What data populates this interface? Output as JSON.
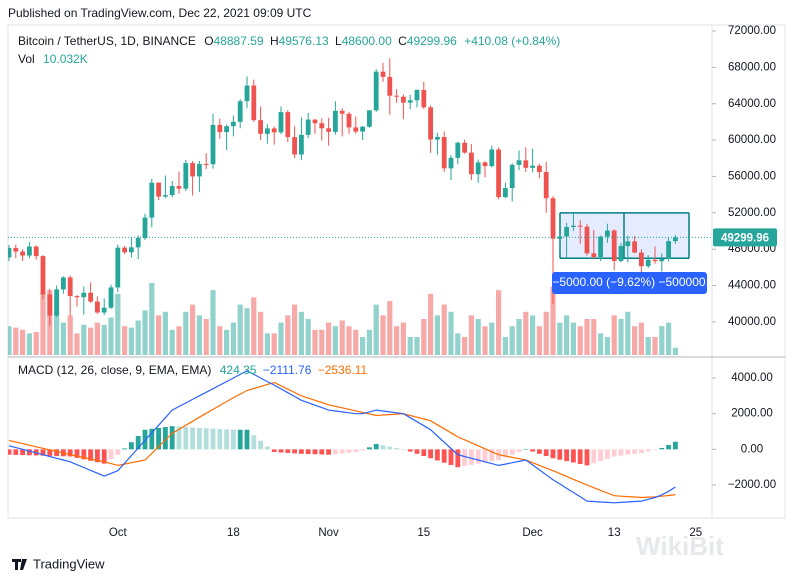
{
  "header": {
    "published": "Published on TradingView.com, Dec 22, 2021 09:09 UTC",
    "symbol": "Bitcoin / TetherUS, 1D, BINANCE",
    "ohlc": [
      [
        "O",
        "48887.59"
      ],
      [
        "H",
        "49576.13"
      ],
      [
        "L",
        "48600.00"
      ],
      [
        "C",
        "49299.96"
      ]
    ],
    "change": "+410.08 (+0.84%)",
    "vol_label": "Vol",
    "vol_value": "10.032K"
  },
  "footer": "TradingView",
  "watermark": "WikiBit",
  "chart_data": {
    "type": "candlestick",
    "categories": [
      null,
      null,
      null,
      null,
      null,
      null,
      null,
      null,
      null,
      null,
      null,
      null,
      null,
      null,
      null,
      null,
      "Oct",
      null,
      null,
      null,
      null,
      null,
      null,
      null,
      null,
      null,
      null,
      null,
      null,
      null,
      null,
      null,
      null,
      "18",
      null,
      null,
      null,
      null,
      null,
      null,
      null,
      null,
      null,
      null,
      null,
      null,
      null,
      "Nov",
      null,
      null,
      null,
      null,
      null,
      null,
      null,
      null,
      null,
      null,
      null,
      null,
      null,
      "15",
      null,
      null,
      null,
      null,
      null,
      null,
      null,
      null,
      null,
      null,
      null,
      null,
      null,
      null,
      null,
      "Dec",
      null,
      null,
      null,
      null,
      null,
      null,
      null,
      null,
      null,
      null,
      null,
      "13",
      null,
      null,
      null,
      null,
      null,
      null,
      null,
      null,
      null,
      null,
      null,
      "25",
      null,
      null
    ],
    "open": [
      47100,
      48121,
      47737,
      47299,
      48292,
      47241,
      43012,
      40694,
      43575,
      44895,
      42840,
      42716,
      43208,
      42235,
      41034,
      41564,
      43790,
      48166,
      47661,
      48200,
      49224,
      51471,
      55315,
      53785,
      53951,
      54949,
      54659,
      57471,
      56005,
      57367,
      57347,
      61672,
      60875,
      61528,
      62010,
      64280,
      66001,
      62193,
      60688,
      61286,
      60852,
      63078,
      60329,
      58413,
      60575,
      62253,
      61859,
      61299,
      60911,
      63219,
      62896,
      61395,
      60937,
      61470,
      63273,
      67525,
      66947,
      64882,
      64774,
      64122,
      64380,
      65519,
      63606,
      60058,
      60344,
      56891,
      58052,
      59707,
      58622,
      56247,
      57541,
      57139,
      58960,
      53726,
      54721,
      57274,
      57776,
      56950,
      57184,
      56480,
      53601,
      49152,
      49396,
      50441,
      50588,
      50471,
      47545,
      47140,
      49389,
      50053,
      46702,
      48343,
      48864,
      47632,
      46131,
      46834,
      46681,
      46914,
      48887.59,
      null,
      null,
      null,
      null,
      null
    ],
    "high": [
      48450,
      48500,
      48000,
      48800,
      48400,
      47350,
      43600,
      44000,
      45000,
      45100,
      42950,
      43900,
      44350,
      42800,
      42600,
      44100,
      48500,
      48350,
      49300,
      49500,
      51900,
      55750,
      55350,
      56100,
      55500,
      56550,
      57800,
      57700,
      57700,
      58550,
      62900,
      62350,
      61700,
      62700,
      64500,
      67000,
      66650,
      63700,
      61750,
      61500,
      63700,
      63300,
      61500,
      62500,
      62980,
      62300,
      62400,
      62450,
      64270,
      63500,
      63100,
      62600,
      61550,
      63300,
      67800,
      68500,
      69000,
      65600,
      65000,
      65000,
      65550,
      66400,
      63800,
      60800,
      60950,
      58350,
      59850,
      60050,
      59550,
      57850,
      57700,
      59400,
      59200,
      55300,
      57450,
      58850,
      59200,
      59050,
      57400,
      57600,
      53850,
      49700,
      50900,
      51950,
      51200,
      50800,
      50100,
      49500,
      50800,
      50200,
      48700,
      49500,
      49450,
      47990,
      47350,
      48300,
      47550,
      49300,
      49576.13,
      null,
      null,
      null,
      null,
      null
    ],
    "low": [
      46700,
      47000,
      46700,
      47000,
      46850,
      42500,
      39600,
      40550,
      43100,
      40700,
      41700,
      40800,
      42100,
      40900,
      40750,
      41400,
      43300,
      47450,
      47100,
      46900,
      49000,
      50400,
      53400,
      53600,
      53700,
      54100,
      54400,
      53900,
      54300,
      56800,
      56850,
      60150,
      58900,
      60400,
      61300,
      63500,
      62000,
      60000,
      59600,
      59500,
      60650,
      59800,
      58000,
      57800,
      60200,
      60700,
      59950,
      59400,
      60600,
      60400,
      60700,
      60700,
      60000,
      61350,
      63100,
      66400,
      62800,
      64100,
      62300,
      63400,
      63600,
      63400,
      58600,
      58400,
      56500,
      55600,
      57350,
      58500,
      55600,
      55300,
      55900,
      57000,
      53500,
      53600,
      53250,
      56700,
      56500,
      56450,
      55800,
      52000,
      42000,
      47700,
      47100,
      50000,
      48600,
      47300,
      46900,
      46700,
      48700,
      45700,
      46550,
      46550,
      47550,
      45500,
      45950,
      46400,
      45550,
      46650,
      48600,
      null,
      null,
      null,
      null,
      null
    ],
    "close": [
      48121,
      47737,
      47299,
      48292,
      47241,
      43012,
      40694,
      43575,
      44895,
      42840,
      42716,
      43208,
      42235,
      41034,
      41564,
      43790,
      48166,
      47661,
      48200,
      49224,
      51471,
      55315,
      53785,
      53951,
      54949,
      54659,
      57471,
      56005,
      57367,
      57347,
      61672,
      60875,
      61528,
      62010,
      64280,
      66001,
      62193,
      60688,
      61286,
      60852,
      63078,
      60329,
      58413,
      60575,
      62253,
      61859,
      61299,
      60911,
      63219,
      62896,
      61395,
      60937,
      61470,
      63273,
      67525,
      66947,
      64882,
      64774,
      64122,
      64380,
      65519,
      63606,
      60058,
      60344,
      56891,
      58052,
      59707,
      58622,
      56247,
      57541,
      57139,
      58960,
      53726,
      54721,
      57274,
      57776,
      56950,
      57184,
      56480,
      53601,
      49152,
      49396,
      50441,
      50588,
      50471,
      47545,
      47140,
      49389,
      50053,
      46702,
      48343,
      48864,
      47632,
      46131,
      46834,
      46681,
      46914,
      48889,
      49299.96,
      null,
      null,
      null,
      null,
      null
    ],
    "up_color": "#26a69a",
    "down_color": "#ef5350",
    "ylim": [
      36360,
      72660
    ],
    "yticks": [
      {
        "value": 72000,
        "label": "72000.00"
      },
      {
        "value": 68000,
        "label": "68000.00"
      },
      {
        "value": 64000,
        "label": "64000.00"
      },
      {
        "value": 60000,
        "label": "60000.00"
      },
      {
        "value": 56000,
        "label": "56000.00"
      },
      {
        "value": 52000,
        "label": "52000.00"
      },
      {
        "value": 48000,
        "label": "48000.00"
      },
      {
        "value": 44000,
        "label": "44000.00"
      },
      {
        "value": 40000,
        "label": "40000.00"
      }
    ],
    "volume": [
      40000,
      38000,
      35000,
      30000,
      32000,
      88000,
      90000,
      60000,
      45000,
      55000,
      30000,
      42000,
      38000,
      45000,
      42000,
      52000,
      85000,
      40000,
      38000,
      48000,
      62000,
      100000,
      55000,
      60000,
      35000,
      40000,
      60000,
      70000,
      55000,
      50000,
      90000,
      40000,
      35000,
      45000,
      70000,
      65000,
      80000,
      60000,
      30000,
      30000,
      45000,
      55000,
      70000,
      60000,
      50000,
      35000,
      35000,
      45000,
      40000,
      48000,
      40000,
      35000,
      25000,
      35000,
      70000,
      55000,
      75000,
      40000,
      45000,
      25000,
      25000,
      50000,
      85000,
      55000,
      70000,
      60000,
      30000,
      25000,
      55000,
      50000,
      40000,
      45000,
      90000,
      25000,
      40000,
      50000,
      60000,
      55000,
      40000,
      60000,
      95000,
      45000,
      55000,
      45000,
      40000,
      50000,
      50000,
      30000,
      25000,
      55000,
      50000,
      60000,
      40000,
      45000,
      25000,
      25000,
      40000,
      45000,
      10032,
      null,
      null,
      null,
      null,
      null
    ],
    "range_box": {
      "label": "−5000.00 (−9.62%) −500000",
      "top": 52000,
      "bottom": 47000,
      "color": "#2962ff"
    },
    "macd": {
      "type": "macd",
      "title": "MACD (12, 26, close, 9, EMA, EMA)",
      "legend_values": [
        "424.35",
        "−2111.76",
        "−2536.11"
      ],
      "ylim": [
        -3850,
        5010
      ],
      "yticks": [
        {
          "value": 4000,
          "label": "4000.00"
        },
        {
          "value": 2000,
          "label": "2000.00"
        },
        {
          "value": 0,
          "label": "0.00"
        },
        {
          "value": -2000,
          "label": "−2000.00"
        }
      ],
      "hist_colors": [
        "#26a69a",
        "#b2dfdb",
        "#ff5252",
        "#ffcdd2"
      ],
      "hist": [
        -300,
        -311,
        -322,
        -333,
        -344,
        -356,
        -367,
        -378,
        -389,
        -400,
        -480,
        -560,
        -640,
        -720,
        -800,
        -550,
        -300,
        50,
        400,
        750,
        1100,
        1150,
        1200,
        1250,
        1300,
        1275,
        1250,
        1225,
        1200,
        1180,
        1160,
        1140,
        1120,
        1100,
        1100,
        1100,
        790,
        480,
        160,
        -150,
        -175,
        -200,
        -225,
        -250,
        -262,
        -275,
        -287,
        -300,
        -264,
        -229,
        -193,
        -157,
        -71,
        114,
        300,
        225,
        150,
        75,
        0,
        -125,
        -250,
        -375,
        -500,
        -625,
        -750,
        -875,
        -1000,
        -933,
        -867,
        -800,
        -733,
        -667,
        -600,
        -450,
        -300,
        -150,
        0,
        -125,
        -250,
        -375,
        -500,
        -580,
        -660,
        -740,
        -820,
        -900,
        -775,
        -650,
        -525,
        -400,
        -350,
        -300,
        -250,
        -200,
        -120,
        -40,
        80,
        240,
        424.35,
        null,
        null,
        null,
        null,
        null
      ],
      "macd_color": "#2962ff",
      "macd": [
        200,
        100,
        0,
        -100,
        -200,
        -300,
        -400,
        -500,
        -600,
        -700,
        -860,
        -1020,
        -1180,
        -1340,
        -1500,
        -1350,
        -1200,
        -775,
        -350,
        75,
        500,
        925,
        1350,
        1775,
        2200,
        2400,
        2600,
        2800,
        3000,
        3200,
        3400,
        3600,
        3800,
        4000,
        4200,
        4400,
        4200,
        4000,
        3800,
        3600,
        3388,
        3175,
        2963,
        2750,
        2613,
        2475,
        2338,
        2200,
        2150,
        2100,
        2050,
        2000,
        2000,
        2100,
        2200,
        2150,
        2100,
        2050,
        2000,
        1775,
        1550,
        1325,
        1100,
        750,
        400,
        50,
        -300,
        -400,
        -500,
        -600,
        -700,
        -800,
        -900,
        -825,
        -750,
        -675,
        -600,
        -875,
        -1150,
        -1425,
        -1700,
        -1940,
        -2180,
        -2420,
        -2660,
        -2900,
        -2925,
        -2950,
        -2975,
        -3000,
        -2975,
        -2950,
        -2925,
        -2900,
        -2800,
        -2700,
        -2550,
        -2350,
        -2111.76,
        null,
        null,
        null,
        null,
        null
      ],
      "signal_color": "#ff6d00",
      "signal": [
        500,
        411,
        322,
        233,
        144,
        56,
        -33,
        -122,
        -211,
        -300,
        -380,
        -460,
        -540,
        -620,
        -700,
        -800,
        -900,
        -825,
        -750,
        -675,
        -600,
        -225,
        150,
        525,
        900,
        1125,
        1350,
        1575,
        1800,
        2020,
        2240,
        2460,
        2680,
        2900,
        3100,
        3300,
        3410,
        3520,
        3640,
        3750,
        3563,
        3375,
        3188,
        3000,
        2875,
        2750,
        2625,
        2500,
        2414,
        2329,
        2243,
        2157,
        2071,
        1986,
        1900,
        1925,
        1950,
        1975,
        2000,
        1900,
        1800,
        1700,
        1600,
        1375,
        1150,
        925,
        700,
        533,
        367,
        200,
        33,
        -133,
        -300,
        -375,
        -450,
        -525,
        -600,
        -750,
        -900,
        -1050,
        -1200,
        -1360,
        -1520,
        -1680,
        -1840,
        -2000,
        -2150,
        -2300,
        -2450,
        -2600,
        -2625,
        -2650,
        -2675,
        -2700,
        -2680,
        -2660,
        -2630,
        -2590,
        -2536.11,
        null,
        null,
        null,
        null,
        null
      ]
    }
  }
}
